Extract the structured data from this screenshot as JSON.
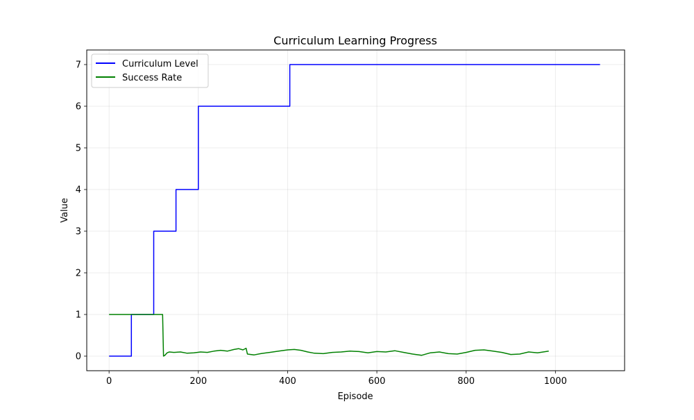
{
  "chart_data": {
    "type": "line",
    "title": "Curriculum Learning Progress",
    "xlabel": "Episode",
    "ylabel": "Value",
    "xlim": [
      -50,
      1155
    ],
    "ylim": [
      -0.35,
      7.35
    ],
    "xticks": [
      0,
      200,
      400,
      600,
      800,
      1000
    ],
    "yticks": [
      0,
      1,
      2,
      3,
      4,
      5,
      6,
      7
    ],
    "grid": true,
    "legend_position": "top-left",
    "series": [
      {
        "name": "Curriculum Level",
        "color": "#0000ff",
        "step": true,
        "x": [
          0,
          50,
          100,
          150,
          200,
          405,
          1100
        ],
        "y": [
          0,
          1,
          3,
          4,
          6,
          7,
          7
        ]
      },
      {
        "name": "Success Rate",
        "color": "#008000",
        "x": [
          0,
          120,
          122,
          125,
          130,
          135,
          145,
          160,
          175,
          190,
          205,
          220,
          235,
          250,
          265,
          280,
          290,
          300,
          307,
          310,
          325,
          340,
          360,
          380,
          400,
          415,
          430,
          445,
          460,
          480,
          500,
          520,
          540,
          560,
          580,
          600,
          620,
          640,
          660,
          680,
          700,
          720,
          740,
          760,
          780,
          800,
          820,
          840,
          860,
          880,
          900,
          920,
          940,
          960,
          985
        ],
        "y": [
          1.0,
          1.0,
          0.0,
          0.02,
          0.08,
          0.1,
          0.09,
          0.1,
          0.07,
          0.08,
          0.1,
          0.09,
          0.12,
          0.14,
          0.12,
          0.16,
          0.18,
          0.15,
          0.19,
          0.05,
          0.03,
          0.06,
          0.09,
          0.12,
          0.15,
          0.16,
          0.14,
          0.1,
          0.07,
          0.06,
          0.09,
          0.1,
          0.12,
          0.11,
          0.08,
          0.11,
          0.1,
          0.13,
          0.09,
          0.05,
          0.02,
          0.08,
          0.1,
          0.06,
          0.05,
          0.09,
          0.14,
          0.15,
          0.12,
          0.09,
          0.04,
          0.05,
          0.1,
          0.08,
          0.12
        ]
      }
    ]
  }
}
